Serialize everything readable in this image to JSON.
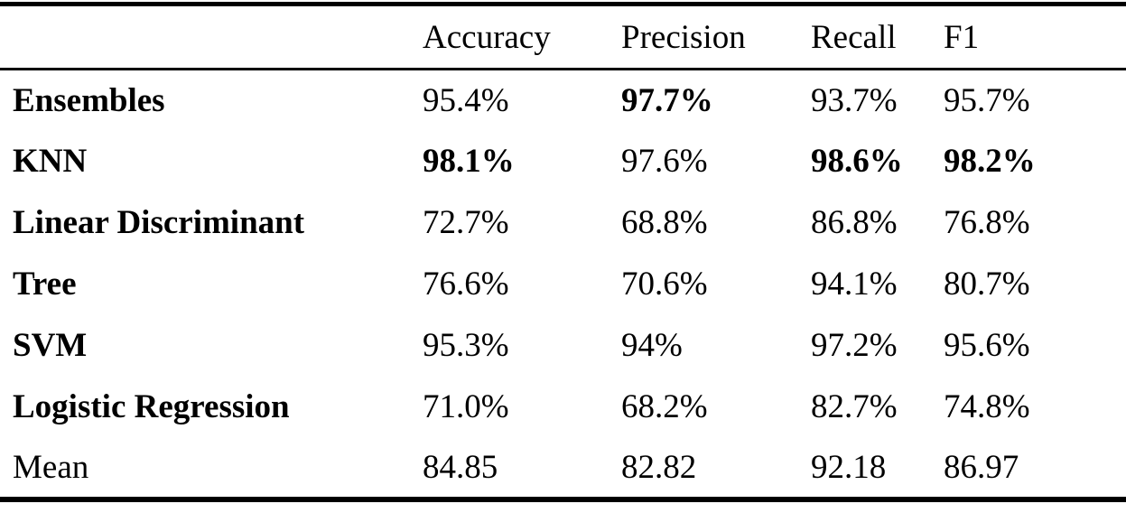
{
  "table": {
    "columns": [
      "",
      "Accuracy",
      "Precision",
      "Recall",
      "F1"
    ],
    "rows": [
      {
        "label": "Ensembles",
        "label_bold": true,
        "values": [
          "95.4%",
          "97.7%",
          "93.7%",
          "95.7%"
        ],
        "bold": [
          false,
          true,
          false,
          false
        ]
      },
      {
        "label": "KNN",
        "label_bold": true,
        "values": [
          "98.1%",
          "97.6%",
          "98.6%",
          "98.2%"
        ],
        "bold": [
          true,
          false,
          true,
          true
        ]
      },
      {
        "label": "Linear Discriminant",
        "label_bold": true,
        "values": [
          "72.7%",
          "68.8%",
          "86.8%",
          "76.8%"
        ],
        "bold": [
          false,
          false,
          false,
          false
        ]
      },
      {
        "label": "Tree",
        "label_bold": true,
        "values": [
          "76.6%",
          "70.6%",
          "94.1%",
          "80.7%"
        ],
        "bold": [
          false,
          false,
          false,
          false
        ]
      },
      {
        "label": "SVM",
        "label_bold": true,
        "values": [
          "95.3%",
          "94%",
          "97.2%",
          "95.6%"
        ],
        "bold": [
          false,
          false,
          false,
          false
        ]
      },
      {
        "label": "Logistic Regression",
        "label_bold": true,
        "values": [
          "71.0%",
          "68.2%",
          "82.7%",
          "74.8%"
        ],
        "bold": [
          false,
          false,
          false,
          false
        ]
      },
      {
        "label": "Mean",
        "label_bold": false,
        "values": [
          "84.85",
          "82.82",
          "92.18",
          "86.97"
        ],
        "bold": [
          false,
          false,
          false,
          false
        ]
      }
    ],
    "colors": {
      "text": "#000000",
      "background": "#ffffff",
      "rule": "#000000"
    }
  }
}
